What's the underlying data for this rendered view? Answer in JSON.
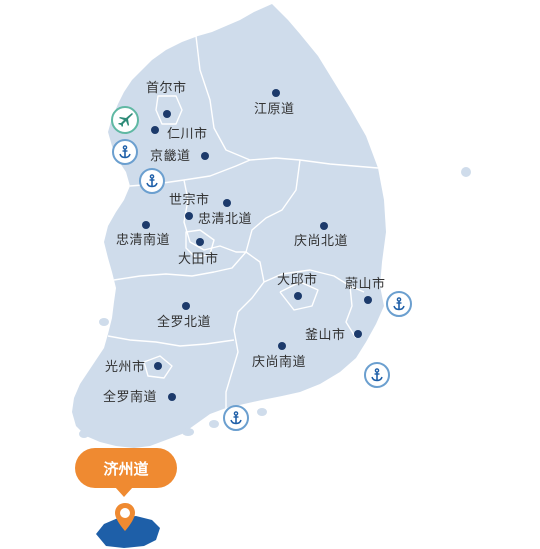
{
  "regions": {
    "seoul": "首尔市",
    "incheon": "仁川市",
    "gyeonggi": "京畿道",
    "gangwon": "江原道",
    "sejong": "世宗市",
    "chungbuk": "忠清北道",
    "chungnam": "忠清南道",
    "daejeon": "大田市",
    "gyeongbuk": "庆尚北道",
    "daegu": "大邱市",
    "ulsan": "蔚山市",
    "jeonbuk": "全罗北道",
    "busan": "釜山市",
    "gyeongnam": "庆尚南道",
    "gwangju": "光州市",
    "jeonnam": "全罗南道"
  },
  "jeju_callout": "济州道",
  "icons": {
    "airport": "airplane-icon",
    "port": "anchor-icon",
    "location": "map-pin-icon"
  },
  "colors": {
    "land": "#cfdceb",
    "jeju": "#1e5fa8",
    "city_dot": "#1c3a6b",
    "port_ring": "#6b9fcf",
    "port_icon": "#1e5fa8",
    "airport_ring": "#5fb8a3",
    "airport_icon": "#2e8b78",
    "callout": "#ef8a31"
  }
}
